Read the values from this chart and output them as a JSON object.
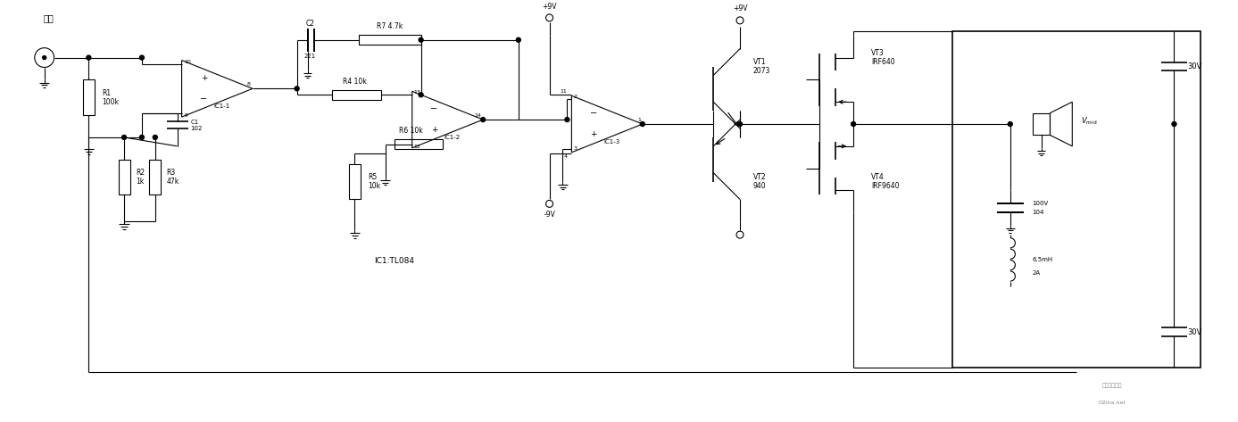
{
  "bg_color": "#ffffff",
  "line_color": "#000000",
  "fig_width": 13.87,
  "fig_height": 4.73,
  "dpi": 100,
  "labels": {
    "input_label": "输入",
    "ic1_1": "IC1-1",
    "ic1_2": "IC1-2",
    "ic1_3": "IC1-3",
    "ic1_tl084": "IC1:TL084",
    "r1": "R1\n100k",
    "r2": "R2\n1k",
    "r3": "R3\n47k",
    "r4": "R4 10k",
    "r5": "R5\n10k",
    "r6": "R6 10k",
    "r7": "R7 4.7k",
    "c1": "C1\n102",
    "c2": "C2",
    "c2_val": "221",
    "vt1": "VT1\n2073",
    "vt2": "VT2\n940",
    "vt3": "VT3\nIRF640",
    "vt4": "VT4\nIRF9640",
    "vmid": "V_mid",
    "cap100v": "100V",
    "cap104": "104",
    "ind": "6.5mH",
    "ind2": "2A",
    "v9pos1": "+9V",
    "v9pos2": "+9V",
    "v9neg": "-9V",
    "v30_1": "30V",
    "v30_2": "30V",
    "watermark1": "电子开发社区",
    "watermark2": "D2ina.net"
  }
}
